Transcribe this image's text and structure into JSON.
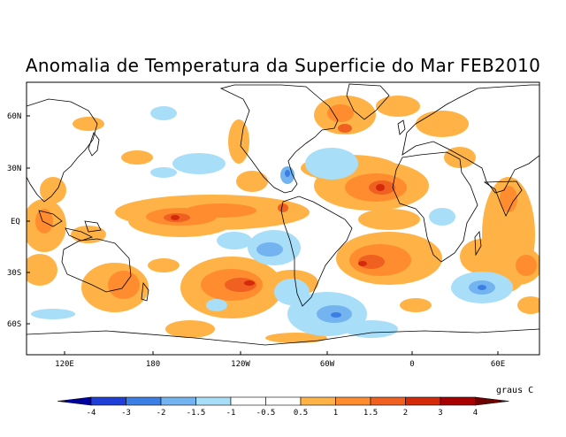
{
  "title": "Anomalia de Temperatura da Superficie do Mar FEB2010",
  "lat_labels": [
    "60N",
    "30N",
    "EQ",
    "30S",
    "60S"
  ],
  "lon_labels": [
    "120E",
    "180",
    "120W",
    "60W",
    "0",
    "60E"
  ],
  "colorbar": {
    "units": "graus C",
    "tick_labels": [
      "-4",
      "-3",
      "-2",
      "-1.5",
      "-1",
      "-0.5",
      "0.5",
      "1",
      "1.5",
      "2",
      "3",
      "4"
    ],
    "colors": [
      "#0000a0",
      "#1f3fd6",
      "#3b7fe6",
      "#73b3f0",
      "#a8def7",
      "#ffffff",
      "#ffffff",
      "#ffb347",
      "#ff8c2e",
      "#f06020",
      "#d42a0c",
      "#a80000",
      "#6e0000"
    ]
  },
  "colors": {
    "land_outline": "#000000",
    "frame": "#000000"
  }
}
